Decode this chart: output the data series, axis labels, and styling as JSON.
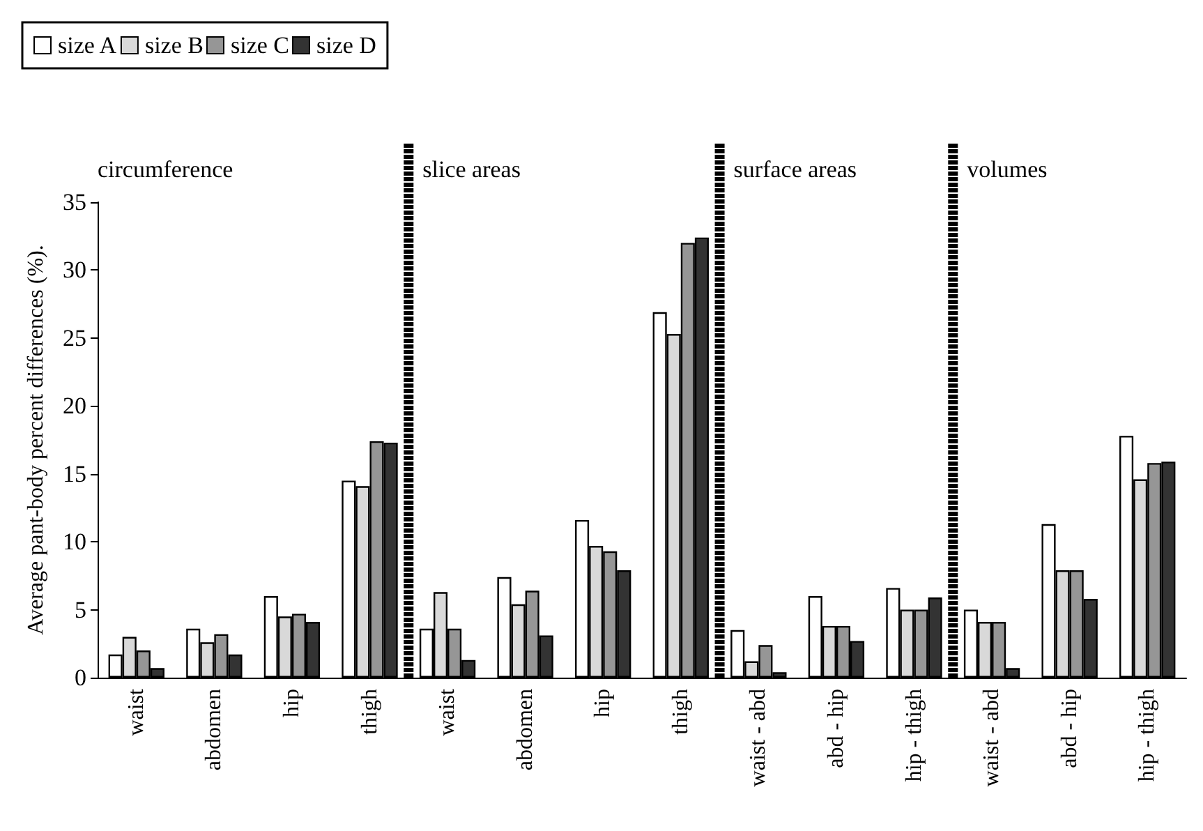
{
  "chart_data": {
    "type": "bar",
    "ylabel": "Average pant-body percent differences (%).",
    "categories": [
      "waist",
      "abdomen",
      "hip",
      "thigh",
      "waist",
      "abdomen",
      "hip",
      "thigh",
      "waist - abd",
      "abd - hip",
      "hip - thigh",
      "waist - abd",
      "abd - hip",
      "hip - thigh"
    ],
    "series": [
      {
        "name": "size A",
        "color": "#ffffff",
        "values": [
          1.7,
          3.6,
          6.0,
          14.5,
          3.6,
          7.4,
          11.6,
          26.9,
          3.5,
          6.0,
          6.6,
          5.0,
          11.3,
          17.8
        ]
      },
      {
        "name": "size B",
        "color": "#d9d9d9",
        "values": [
          3.0,
          2.6,
          4.5,
          14.1,
          6.3,
          5.4,
          9.7,
          25.3,
          1.2,
          3.8,
          5.0,
          4.1,
          7.9,
          14.6
        ]
      },
      {
        "name": "size C",
        "color": "#969696",
        "values": [
          2.0,
          3.2,
          4.7,
          17.4,
          3.6,
          6.4,
          9.3,
          32.0,
          2.4,
          3.8,
          5.0,
          4.1,
          7.9,
          15.8
        ]
      },
      {
        "name": "size D",
        "color": "#333333",
        "values": [
          0.7,
          1.7,
          4.1,
          17.3,
          1.3,
          3.1,
          7.9,
          32.4,
          0.4,
          2.7,
          5.9,
          0.7,
          5.8,
          15.9
        ]
      }
    ],
    "ylim": [
      0,
      35
    ],
    "yticks": [
      0,
      5,
      10,
      15,
      20,
      25,
      30,
      35
    ],
    "grid": false,
    "legend": "top left",
    "annotations": [
      "circumference",
      "slice areas",
      "surface areas",
      "volumes"
    ]
  }
}
